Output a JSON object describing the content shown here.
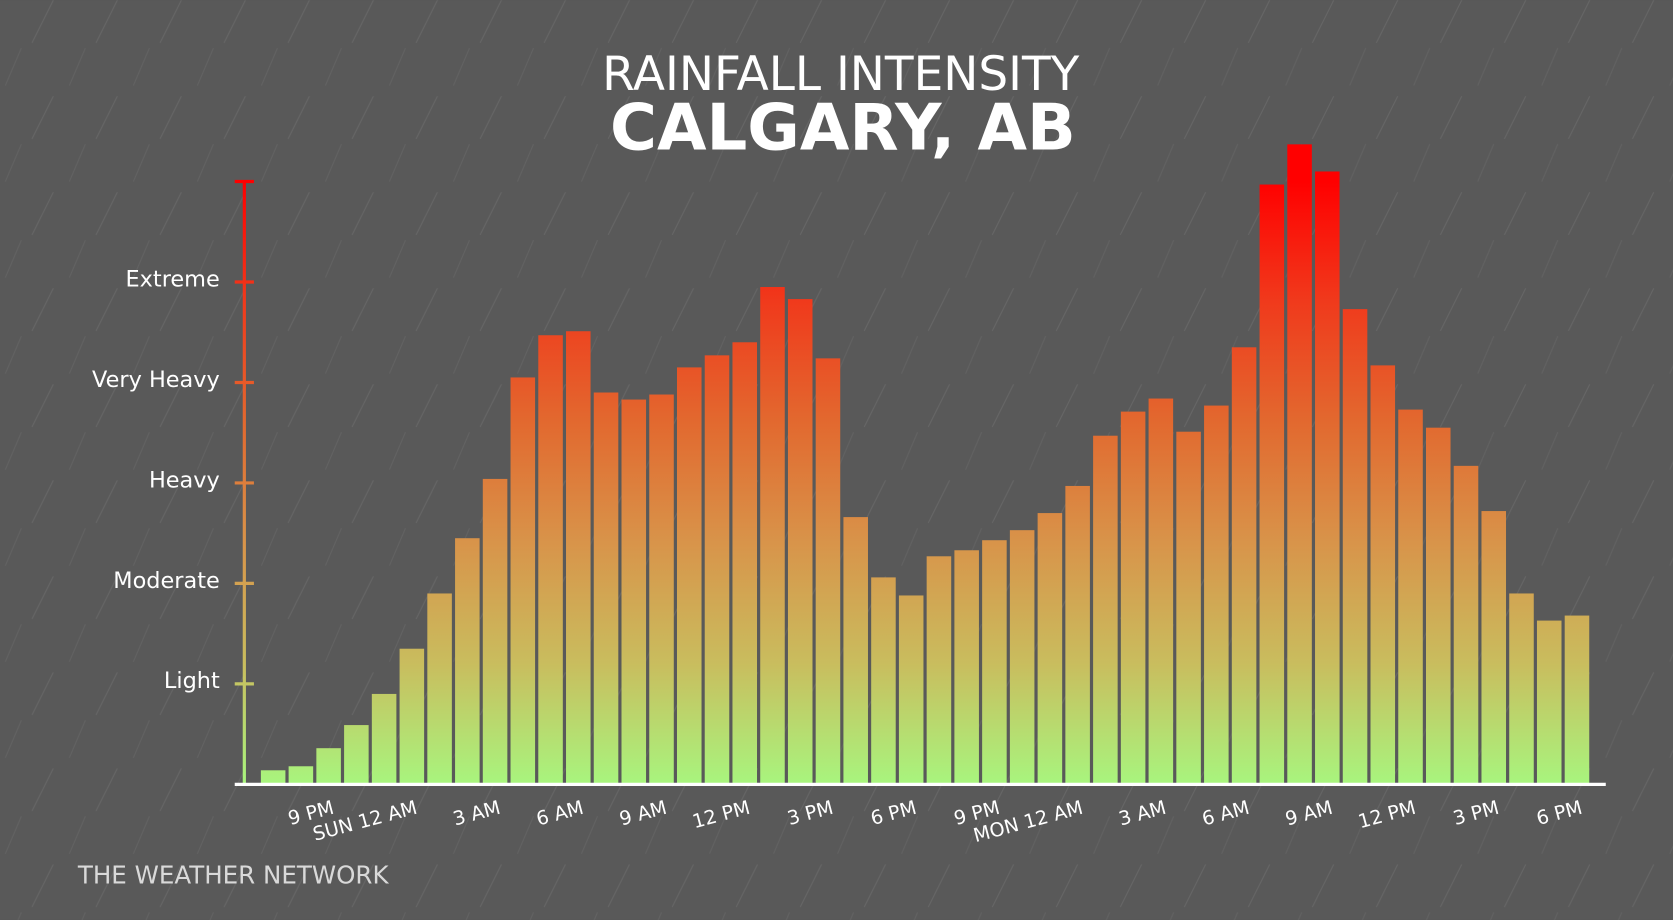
{
  "chart_data": {
    "type": "bar",
    "title": "RAINFALL INTENSITY",
    "subtitle": "CALGARY, AB",
    "source": "THE WEATHER NETWORK",
    "categories": [
      null,
      null,
      "9 PM",
      null,
      null,
      "SUN 12 AM",
      null,
      null,
      "3 AM",
      null,
      null,
      "6 AM",
      null,
      null,
      "9 AM",
      null,
      null,
      "12 PM",
      null,
      null,
      "3 PM",
      null,
      null,
      "6 PM",
      null,
      null,
      "9 PM",
      null,
      null,
      "MON 12 AM",
      null,
      null,
      "3 AM",
      null,
      null,
      "6 AM",
      null,
      null,
      "9 AM",
      null,
      null,
      "12 PM",
      null,
      null,
      "3 PM",
      null,
      null,
      "6 PM"
    ],
    "values": [
      0.14,
      0.18,
      0.36,
      0.59,
      0.9,
      1.35,
      1.9,
      2.45,
      3.04,
      4.05,
      4.47,
      4.51,
      3.9,
      3.83,
      3.88,
      4.15,
      4.27,
      4.4,
      4.95,
      4.83,
      4.24,
      2.66,
      2.06,
      1.88,
      2.27,
      2.33,
      2.43,
      2.53,
      2.7,
      2.97,
      3.47,
      3.71,
      3.84,
      3.51,
      3.77,
      4.35,
      5.97,
      6.37,
      6.1,
      4.73,
      4.17,
      3.73,
      3.55,
      3.17,
      2.72,
      1.9,
      1.63,
      1.68
    ],
    "ylim": [
      0,
      6
    ],
    "yticks": [
      {
        "value": 1,
        "label": "Light"
      },
      {
        "value": 2,
        "label": "Moderate"
      },
      {
        "value": 3,
        "label": "Heavy"
      },
      {
        "value": 4,
        "label": "Very Heavy"
      },
      {
        "value": 5,
        "label": "Extreme"
      }
    ],
    "gradient": [
      "#a8f57e",
      "#c9bd5e",
      "#d8944a",
      "#e2692f",
      "#f03a1c",
      "#ff0000"
    ]
  }
}
